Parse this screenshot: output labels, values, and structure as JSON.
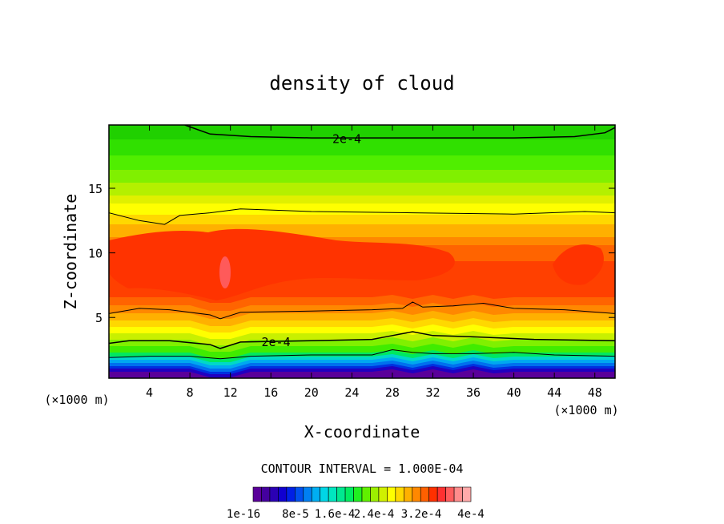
{
  "chart_data": {
    "type": "heatmap",
    "title": "density of cloud",
    "xlabel": "X-coordinate",
    "ylabel": "Z-coordinate",
    "x_unit_label": "(×1000 m)",
    "y_unit_label": "(×1000 m)",
    "xlim": [
      0,
      50
    ],
    "ylim": [
      0.3,
      19.9
    ],
    "x_ticks": [
      4,
      8,
      12,
      16,
      20,
      24,
      28,
      32,
      36,
      40,
      44,
      48
    ],
    "y_ticks": [
      5,
      10,
      15
    ],
    "contour_interval_text": "CONTOUR INTERVAL = 1.000E-04",
    "contour_line_labels": [
      {
        "text": "2e-4",
        "x": 23.5,
        "z": 18.8
      },
      {
        "text": "2e-4",
        "x": 16.5,
        "z": 3.1
      }
    ],
    "colorbar_labels": [
      "1e-16",
      "8e-5",
      "1.6e-4",
      "2.4e-4",
      "3.2e-4",
      "4e-4"
    ],
    "colorbar_colors": [
      "#5a009a",
      "#44009e",
      "#2a00b4",
      "#1000d0",
      "#0020e6",
      "#0050ee",
      "#0080f2",
      "#00aef2",
      "#00d6e6",
      "#00e6c0",
      "#00e890",
      "#00ec60",
      "#20f020",
      "#60f000",
      "#9cf000",
      "#d0f000",
      "#ffff00",
      "#ffd800",
      "#ffb000",
      "#ff8800",
      "#ff6000",
      "#ff3000",
      "#ff3030",
      "#ff5c5c",
      "#ff8c8c",
      "#ffaaaa"
    ],
    "profile_mid_x": [
      {
        "z": 0.5,
        "value": 2e-05
      },
      {
        "z": 1.4,
        "value": 6e-05
      },
      {
        "z": 2.2,
        "value": 0.00012
      },
      {
        "z": 3.0,
        "value": 0.0002
      },
      {
        "z": 4.5,
        "value": 0.00026
      },
      {
        "z": 5.5,
        "value": 0.0003
      },
      {
        "z": 8.0,
        "value": 0.00034
      },
      {
        "z": 11.0,
        "value": 0.00032
      },
      {
        "z": 13.0,
        "value": 0.0003
      },
      {
        "z": 15.0,
        "value": 0.00026
      },
      {
        "z": 17.0,
        "value": 0.00022
      },
      {
        "z": 19.0,
        "value": 0.00019
      }
    ]
  }
}
